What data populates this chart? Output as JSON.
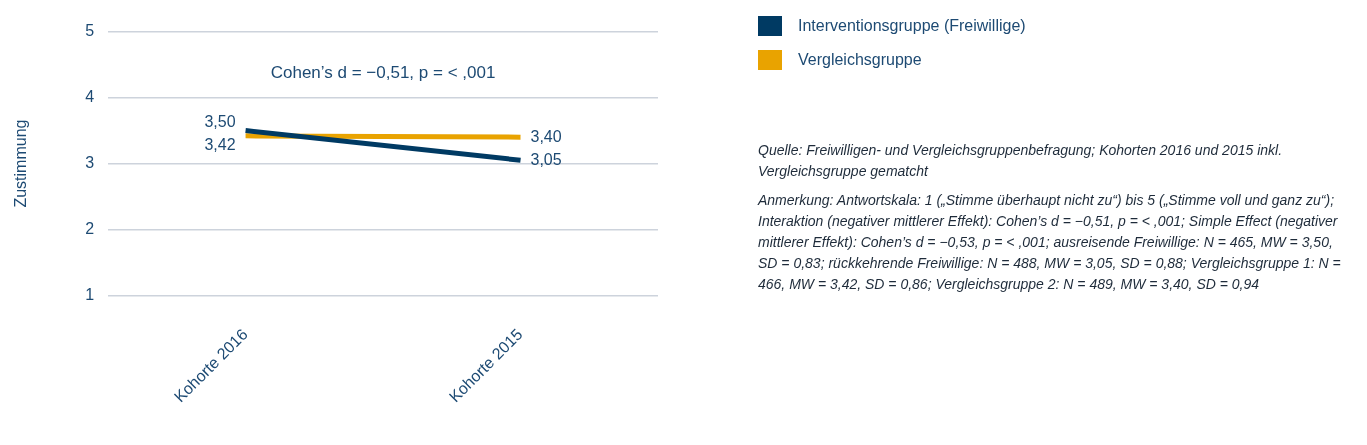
{
  "chart_data": {
    "type": "line",
    "categories": [
      "Kohorte 2016",
      "Kohorte 2015"
    ],
    "series": [
      {
        "name": "Interventionsgruppe (Freiwillige)",
        "color": "#003a63",
        "values": [
          3.5,
          3.05
        ],
        "value_labels": [
          "3,50",
          "3,05"
        ]
      },
      {
        "name": "Vergleichsgruppe",
        "color": "#e9a300",
        "values": [
          3.42,
          3.4
        ],
        "value_labels": [
          "3,42",
          "3,40"
        ]
      }
    ],
    "ylabel": "Zustimmung",
    "ylim": [
      1,
      5
    ],
    "yticks": [
      1,
      2,
      3,
      4,
      5
    ],
    "grid": "y",
    "legend": "top right",
    "marker": "none",
    "line_style": "solid",
    "annotations": [
      "Cohen’s d = −0,51, p = < ,001",
      "Quelle: Freiwilligen- und Vergleichsgruppenbefragung; Kohorten 2016 und 2015 inkl. Vergleichsgruppe gematcht",
      "Anmerkung: Antwortskala: 1 („Stimme überhaupt nicht zu“) bis 5 („Stimme voll und ganz zu“); Interaktion (negativer mittlerer Effekt): Cohen’s d = −0,51, p = < ,001; Simple Effect (negativer mittlerer Effekt): Cohen’s d = −0,53, p = < ,001; ausreisende Freiwillige: N = 465, MW = 3,50, SD = 0,83; rückkehrende Freiwillige: N = 488, MW = 3,05, SD = 0,88; Vergleichsgruppe 1: N = 466, MW = 3,42, SD = 0,86; Vergleichsgruppe 2: N = 489, MW = 3,40, SD = 0,94"
    ]
  }
}
